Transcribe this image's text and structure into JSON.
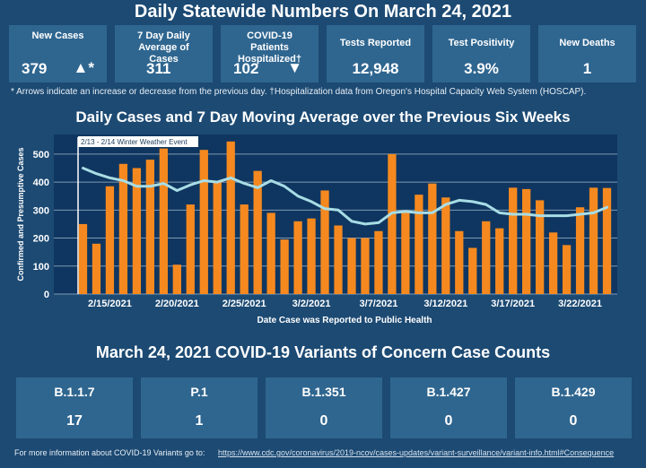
{
  "header": {
    "title": "Daily Statewide Numbers On March 24, 2021"
  },
  "stats": [
    {
      "label": "New Cases",
      "value": "379",
      "arrow": "▲*"
    },
    {
      "label": "7 Day Daily Average of Cases",
      "value": "311",
      "arrow": ""
    },
    {
      "label": "COVID-19 Patients Hospitalized†",
      "value": "102",
      "arrow": "▼"
    },
    {
      "label": "Tests Reported",
      "value": "12,948",
      "arrow": ""
    },
    {
      "label": "Test Positivity",
      "value": "3.9%",
      "arrow": ""
    },
    {
      "label": "New Deaths",
      "value": "1",
      "arrow": ""
    }
  ],
  "footnote": "* Arrows indicate an increase or decrease from the previous day. †Hospitalization data from Oregon's Hospital Capacity Web System (HOSCAP).",
  "chart_title": "Daily Cases and 7 Day Moving Average over the Previous Six Weeks",
  "chart_data": {
    "type": "bar",
    "xlabel": "Date Case was Reported to Public Health",
    "ylabel": "Confirmed and Presumptive Cases",
    "ylim": [
      0,
      570
    ],
    "yticks": [
      0,
      100,
      200,
      300,
      400,
      500
    ],
    "grid": true,
    "annotation": "2/13 - 2/14 Winter Weather Event",
    "annotation_range": [
      "2/13/2021",
      "2/14/2021"
    ],
    "tick_labels": [
      "2/15/2021",
      "2/20/2021",
      "2/25/2021",
      "3/2/2021",
      "3/7/2021",
      "3/12/2021",
      "3/17/2021",
      "3/22/2021"
    ],
    "tick_indices": [
      2,
      7,
      12,
      17,
      22,
      27,
      32,
      37
    ],
    "categories": [
      "2/13/2021",
      "2/14/2021",
      "2/15/2021",
      "2/16/2021",
      "2/17/2021",
      "2/18/2021",
      "2/19/2021",
      "2/20/2021",
      "2/21/2021",
      "2/22/2021",
      "2/23/2021",
      "2/24/2021",
      "2/25/2021",
      "2/26/2021",
      "2/27/2021",
      "2/28/2021",
      "3/1/2021",
      "3/2/2021",
      "3/3/2021",
      "3/4/2021",
      "3/5/2021",
      "3/6/2021",
      "3/7/2021",
      "3/8/2021",
      "3/9/2021",
      "3/10/2021",
      "3/11/2021",
      "3/12/2021",
      "3/13/2021",
      "3/14/2021",
      "3/15/2021",
      "3/16/2021",
      "3/17/2021",
      "3/18/2021",
      "3/19/2021",
      "3/20/2021",
      "3/21/2021",
      "3/22/2021",
      "3/23/2021",
      "3/24/2021"
    ],
    "series": [
      {
        "type": "bar",
        "color": "#f5891f",
        "values": [
          250,
          180,
          385,
          465,
          450,
          480,
          520,
          105,
          320,
          515,
          400,
          545,
          320,
          440,
          290,
          195,
          260,
          270,
          370,
          245,
          200,
          200,
          225,
          500,
          290,
          355,
          395,
          345,
          225,
          165,
          260,
          235,
          380,
          375,
          335,
          220,
          175,
          310,
          380,
          379
        ]
      },
      {
        "type": "line",
        "color": "#a8dde6",
        "values": [
          450,
          430,
          415,
          405,
          385,
          385,
          395,
          370,
          390,
          405,
          400,
          415,
          395,
          380,
          405,
          385,
          350,
          330,
          305,
          300,
          260,
          250,
          255,
          290,
          295,
          290,
          290,
          320,
          335,
          330,
          320,
          290,
          285,
          285,
          280,
          280,
          280,
          285,
          290,
          310
        ]
      }
    ],
    "colors": {
      "bars": "#f5891f",
      "average": "#a8dde6",
      "plot_bg": "#0f3660"
    }
  },
  "variants_title": "March 24, 2021 COVID-19 Variants of Concern Case Counts",
  "variants": [
    {
      "label": "B.1.1.7",
      "value": "17"
    },
    {
      "label": "P.1",
      "value": "1"
    },
    {
      "label": "B.1.351",
      "value": "0"
    },
    {
      "label": "B.1.427",
      "value": "0"
    },
    {
      "label": "B.1.429",
      "value": "0"
    }
  ],
  "bottom_note": {
    "text": "For more information about COVID-19 Variants go to:",
    "link": "https://www.cdc.gov/coronavirus/2019-ncov/cases-updates/variant-surveillance/variant-info.html#Consequence"
  }
}
